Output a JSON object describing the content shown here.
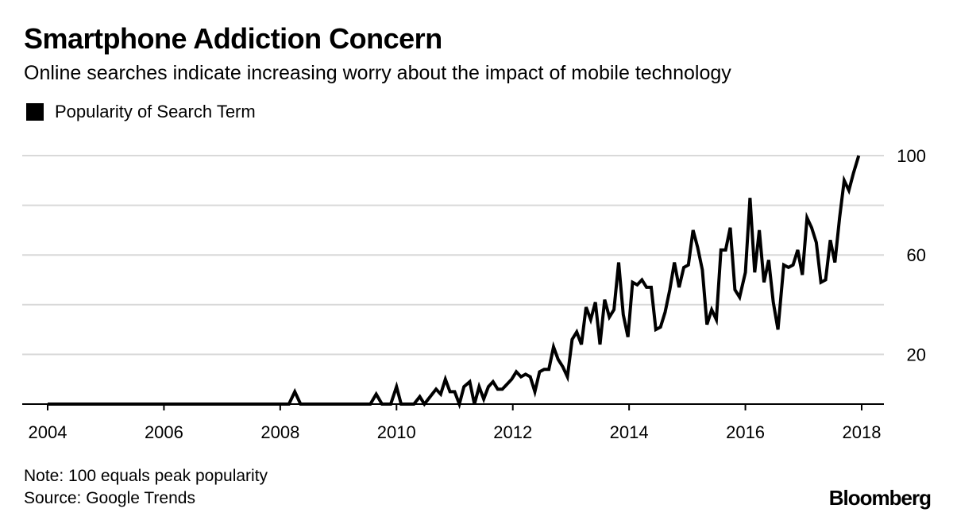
{
  "header": {
    "title": "Smartphone Addiction Concern",
    "subtitle": "Online searches indicate increasing worry about the impact of mobile technology"
  },
  "footer": {
    "note": "Note: 100 equals peak popularity",
    "source": "Source: Google Trends",
    "brand": "Bloomberg"
  },
  "colors": {
    "line": "#000000",
    "grid": "#d9d9d9",
    "axis": "#000000"
  },
  "chart_data": {
    "type": "line",
    "title": "Smartphone Addiction Concern",
    "subtitle": "Online searches indicate increasing worry about the impact of mobile technology",
    "xlabel": "",
    "ylabel": "",
    "xlim": [
      2004,
      2018.05
    ],
    "ylim": [
      0,
      100
    ],
    "x_ticks": [
      2004,
      2006,
      2008,
      2010,
      2012,
      2014,
      2016,
      2018
    ],
    "x_tick_labels": [
      "2004",
      "2006",
      "2008",
      "2010",
      "2012",
      "2014",
      "2016",
      "2018"
    ],
    "y_ticks": [
      20,
      60,
      100
    ],
    "y_tick_labels": [
      "20",
      "60",
      "100"
    ],
    "gridlines_y": [
      0,
      20,
      40,
      60,
      80,
      100
    ],
    "grid": true,
    "y_axis_position": "right",
    "legend": "top-left",
    "series": [
      {
        "name": "Popularity of Search Term",
        "points": [
          [
            2004.0,
            0
          ],
          [
            2008.05,
            0
          ],
          [
            2008.15,
            0
          ],
          [
            2008.25,
            5
          ],
          [
            2008.35,
            0
          ],
          [
            2009.55,
            0
          ],
          [
            2009.65,
            4
          ],
          [
            2009.75,
            0
          ],
          [
            2009.9,
            0
          ],
          [
            2010.0,
            7
          ],
          [
            2010.08,
            0
          ],
          [
            2010.3,
            0
          ],
          [
            2010.4,
            3
          ],
          [
            2010.48,
            0
          ],
          [
            2010.58,
            3
          ],
          [
            2010.68,
            6
          ],
          [
            2010.76,
            4
          ],
          [
            2010.84,
            10
          ],
          [
            2010.92,
            5
          ],
          [
            2011.0,
            5
          ],
          [
            2011.08,
            0
          ],
          [
            2011.16,
            7
          ],
          [
            2011.26,
            9
          ],
          [
            2011.34,
            0
          ],
          [
            2011.42,
            7
          ],
          [
            2011.5,
            2
          ],
          [
            2011.58,
            7
          ],
          [
            2011.66,
            9
          ],
          [
            2011.74,
            6
          ],
          [
            2011.82,
            6
          ],
          [
            2011.9,
            8
          ],
          [
            2011.98,
            10
          ],
          [
            2012.06,
            13
          ],
          [
            2012.14,
            11
          ],
          [
            2012.22,
            12
          ],
          [
            2012.3,
            11
          ],
          [
            2012.38,
            5
          ],
          [
            2012.46,
            13
          ],
          [
            2012.54,
            14
          ],
          [
            2012.62,
            14
          ],
          [
            2012.7,
            23
          ],
          [
            2012.78,
            18
          ],
          [
            2012.86,
            15
          ],
          [
            2012.94,
            11
          ],
          [
            2013.02,
            26
          ],
          [
            2013.1,
            29
          ],
          [
            2013.18,
            24
          ],
          [
            2013.26,
            39
          ],
          [
            2013.34,
            34
          ],
          [
            2013.42,
            41
          ],
          [
            2013.5,
            24
          ],
          [
            2013.58,
            42
          ],
          [
            2013.66,
            35
          ],
          [
            2013.74,
            38
          ],
          [
            2013.82,
            57
          ],
          [
            2013.9,
            36
          ],
          [
            2013.98,
            27
          ],
          [
            2014.06,
            49
          ],
          [
            2014.14,
            48
          ],
          [
            2014.22,
            50
          ],
          [
            2014.3,
            47
          ],
          [
            2014.38,
            47
          ],
          [
            2014.46,
            30
          ],
          [
            2014.54,
            31
          ],
          [
            2014.62,
            37
          ],
          [
            2014.7,
            46
          ],
          [
            2014.78,
            57
          ],
          [
            2014.86,
            47
          ],
          [
            2014.94,
            55
          ],
          [
            2015.02,
            56
          ],
          [
            2015.1,
            70
          ],
          [
            2015.18,
            63
          ],
          [
            2015.26,
            54
          ],
          [
            2015.34,
            32
          ],
          [
            2015.42,
            38
          ],
          [
            2015.5,
            34
          ],
          [
            2015.58,
            62
          ],
          [
            2015.66,
            62
          ],
          [
            2015.74,
            71
          ],
          [
            2015.82,
            46
          ],
          [
            2015.9,
            43
          ],
          [
            2016.0,
            53
          ],
          [
            2016.08,
            83
          ],
          [
            2016.16,
            53
          ],
          [
            2016.24,
            70
          ],
          [
            2016.32,
            49
          ],
          [
            2016.4,
            58
          ],
          [
            2016.48,
            41
          ],
          [
            2016.56,
            30
          ],
          [
            2016.66,
            56
          ],
          [
            2016.74,
            55
          ],
          [
            2016.82,
            56
          ],
          [
            2016.9,
            62
          ],
          [
            2016.98,
            52
          ],
          [
            2017.06,
            75
          ],
          [
            2017.14,
            71
          ],
          [
            2017.22,
            65
          ],
          [
            2017.3,
            49
          ],
          [
            2017.38,
            50
          ],
          [
            2017.46,
            66
          ],
          [
            2017.54,
            57
          ],
          [
            2017.62,
            75
          ],
          [
            2017.7,
            90
          ],
          [
            2017.78,
            86
          ],
          [
            2017.86,
            93
          ],
          [
            2017.95,
            100
          ]
        ]
      }
    ]
  }
}
